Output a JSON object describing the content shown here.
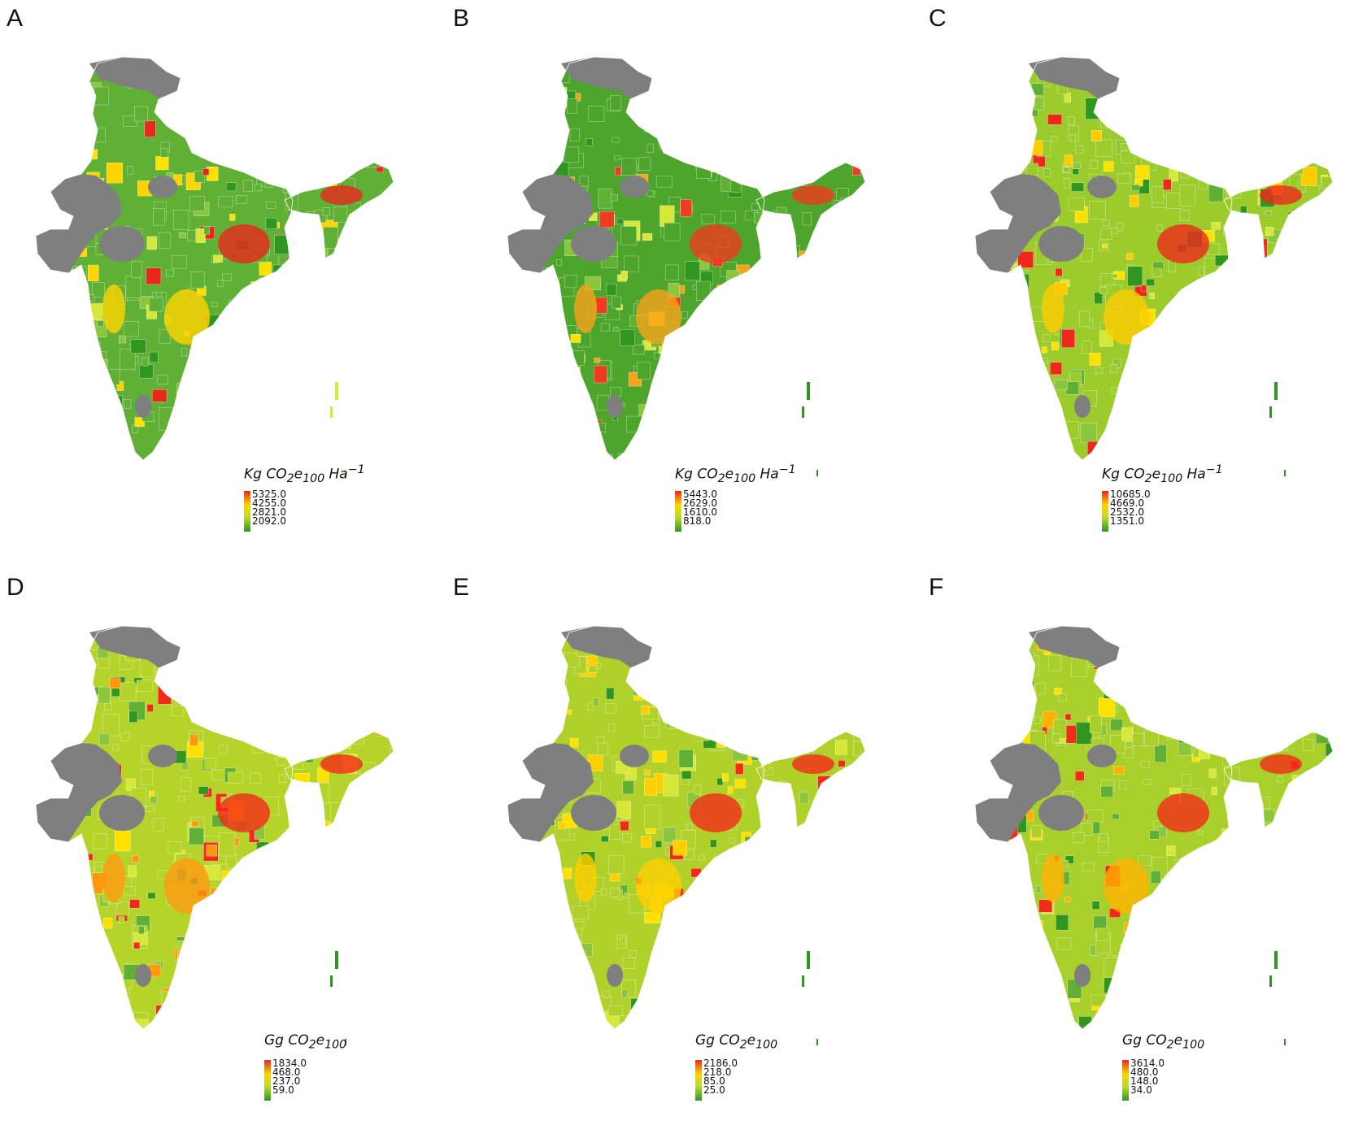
{
  "panels": [
    {
      "letter": "A",
      "unit_main": "Kg CO",
      "unit_sub1": "2",
      "unit_mid": "e",
      "unit_sub2": "100",
      "unit_tail": " Ha",
      "unit_sup": "−1",
      "legend": [
        "5325.0",
        "4255.0",
        "2821.0",
        "2092.0"
      ],
      "palette": {
        "dominant": "#5fb035",
        "hot": "#e8281c",
        "warm": "#ffd400"
      }
    },
    {
      "letter": "B",
      "unit_main": "Kg CO",
      "unit_sub1": "2",
      "unit_mid": "e",
      "unit_sub2": "100",
      "unit_tail": " Ha",
      "unit_sup": "−1",
      "legend": [
        "5443.0",
        "2629.0",
        "1610.0",
        "818.0"
      ],
      "palette": {
        "dominant": "#4ea52c",
        "hot": "#ef3b1e",
        "warm": "#f7a21b"
      }
    },
    {
      "letter": "C",
      "unit_main": "Kg CO",
      "unit_sub1": "2",
      "unit_mid": "e",
      "unit_sub2": "100",
      "unit_tail": " Ha",
      "unit_sup": "−1",
      "legend": [
        "10685.0",
        "4669.0",
        "2532.0",
        "1351.0"
      ],
      "palette": {
        "dominant": "#9ccb2c",
        "hot": "#f0281c",
        "warm": "#ffcc00"
      }
    },
    {
      "letter": "D",
      "unit_main": "Gg CO",
      "unit_sub1": "2",
      "unit_mid": "e",
      "unit_sub2": "100",
      "unit_tail": "",
      "unit_sup": "",
      "legend": [
        "1834.0",
        "468.0",
        "237.0",
        "59.0"
      ],
      "palette": {
        "dominant": "#b5d42a",
        "hot": "#f22b18",
        "warm": "#ff9a10"
      }
    },
    {
      "letter": "E",
      "unit_main": "Gg CO",
      "unit_sub1": "2",
      "unit_mid": "e",
      "unit_sub2": "100",
      "unit_tail": "",
      "unit_sup": "",
      "legend": [
        "2186.0",
        "218.0",
        "85.0",
        "25.0"
      ],
      "palette": {
        "dominant": "#b0d02a",
        "hot": "#f42a18",
        "warm": "#ffcf00"
      }
    },
    {
      "letter": "F",
      "unit_main": "Gg CO",
      "unit_sub1": "2",
      "unit_mid": "e",
      "unit_sub2": "100",
      "unit_tail": "",
      "unit_sup": "",
      "legend": [
        "3614.0",
        "480.0",
        "148.0",
        "34.0"
      ],
      "palette": {
        "dominant": "#a8cf2a",
        "hot": "#f42a18",
        "warm": "#ffb300"
      }
    }
  ],
  "no_data_color": "#7f7f7f"
}
